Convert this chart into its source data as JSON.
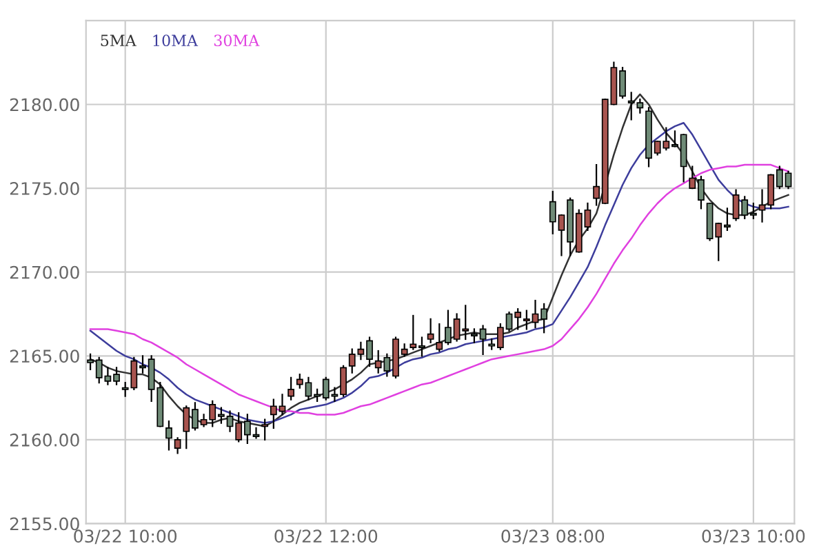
{
  "chart_data": {
    "type": "candlestick",
    "categories": [
      null,
      null,
      null,
      null,
      "03/22 10:00",
      null,
      null,
      null,
      null,
      null,
      null,
      null,
      null,
      null,
      null,
      null,
      null,
      null,
      null,
      null,
      null,
      null,
      null,
      null,
      null,
      null,
      null,
      "03/22 12:00",
      null,
      null,
      null,
      null,
      null,
      null,
      null,
      null,
      null,
      null,
      null,
      null,
      null,
      null,
      null,
      null,
      null,
      null,
      null,
      null,
      null,
      null,
      null,
      null,
      null,
      "03/23 08:00",
      null,
      null,
      null,
      null,
      null,
      null,
      null,
      null,
      null,
      null,
      null,
      null,
      null,
      null,
      null,
      null,
      null,
      null,
      null,
      null,
      null,
      null,
      "03/23 10:00",
      null,
      null,
      null,
      null
    ],
    "ohlc": [
      [
        2164.75,
        2165.1,
        2164.2,
        2164.6
      ],
      [
        2164.75,
        2164.9,
        2163.4,
        2163.7
      ],
      [
        2163.8,
        2164.3,
        2163.3,
        2163.5
      ],
      [
        2163.9,
        2164.3,
        2163.3,
        2163.5
      ],
      [
        2163.1,
        2163.4,
        2162.6,
        2163.0
      ],
      [
        2163.1,
        2164.9,
        2163.0,
        2164.7
      ],
      [
        2164.4,
        2165.0,
        2164.0,
        2164.3
      ],
      [
        2164.8,
        2165.0,
        2162.3,
        2163.0
      ],
      [
        2163.1,
        2163.4,
        2160.8,
        2160.8
      ],
      [
        2160.7,
        2161.1,
        2159.4,
        2160.1
      ],
      [
        2159.5,
        2160.1,
        2159.2,
        2160.0
      ],
      [
        2160.5,
        2162.0,
        2159.5,
        2161.9
      ],
      [
        2161.8,
        2162.2,
        2160.6,
        2160.7
      ],
      [
        2160.9,
        2161.5,
        2160.8,
        2161.2
      ],
      [
        2161.2,
        2162.3,
        2160.8,
        2162.1
      ],
      [
        2161.5,
        2161.9,
        2161.0,
        2161.4
      ],
      [
        2161.4,
        2161.7,
        2160.5,
        2160.8
      ],
      [
        2160.0,
        2161.6,
        2159.9,
        2161.0
      ],
      [
        2161.1,
        2161.5,
        2159.8,
        2160.3
      ],
      [
        2160.3,
        2160.7,
        2160.1,
        2160.2
      ],
      [
        2160.8,
        2161.2,
        2160.0,
        2160.9
      ],
      [
        2161.5,
        2162.4,
        2160.7,
        2162.0
      ],
      [
        2161.7,
        2162.7,
        2161.5,
        2162.0
      ],
      [
        2162.6,
        2163.7,
        2162.4,
        2163.0
      ],
      [
        2163.3,
        2163.9,
        2163.1,
        2163.6
      ],
      [
        2163.4,
        2163.7,
        2162.4,
        2162.6
      ],
      [
        2162.7,
        2163.0,
        2162.3,
        2162.6
      ],
      [
        2163.6,
        2163.7,
        2162.4,
        2162.5
      ],
      [
        2162.7,
        2163.1,
        2162.3,
        2162.6
      ],
      [
        2162.7,
        2164.4,
        2162.6,
        2164.3
      ],
      [
        2164.4,
        2165.4,
        2164.0,
        2165.1
      ],
      [
        2165.1,
        2165.8,
        2164.8,
        2165.4
      ],
      [
        2165.9,
        2166.1,
        2164.4,
        2164.8
      ],
      [
        2164.3,
        2165.3,
        2164.0,
        2164.7
      ],
      [
        2164.9,
        2165.1,
        2163.8,
        2164.1
      ],
      [
        2163.8,
        2166.1,
        2163.7,
        2166.0
      ],
      [
        2165.1,
        2165.7,
        2165.0,
        2165.4
      ],
      [
        2165.5,
        2167.4,
        2165.4,
        2165.7
      ],
      [
        2165.6,
        2166.1,
        2165.0,
        2165.5
      ],
      [
        2166.0,
        2167.2,
        2165.8,
        2166.3
      ],
      [
        2165.4,
        2166.9,
        2165.3,
        2165.8
      ],
      [
        2166.7,
        2167.7,
        2165.7,
        2165.8
      ],
      [
        2166.0,
        2167.5,
        2165.9,
        2167.2
      ],
      [
        2166.5,
        2168.0,
        2166.0,
        2166.6
      ],
      [
        2166.3,
        2166.6,
        2165.8,
        2166.2
      ],
      [
        2166.6,
        2166.8,
        2165.1,
        2166.0
      ],
      [
        2165.7,
        2166.0,
        2165.4,
        2165.6
      ],
      [
        2165.5,
        2166.9,
        2165.4,
        2166.7
      ],
      [
        2167.5,
        2167.6,
        2166.5,
        2166.6
      ],
      [
        2167.3,
        2167.8,
        2166.6,
        2167.6
      ],
      [
        2167.1,
        2167.7,
        2166.6,
        2167.2
      ],
      [
        2167.0,
        2168.3,
        2166.7,
        2167.5
      ],
      [
        2167.8,
        2168.1,
        2166.4,
        2167.2
      ],
      [
        2174.2,
        2174.8,
        2172.3,
        2173.0
      ],
      [
        2172.5,
        2173.4,
        2171.0,
        2173.4
      ],
      [
        2174.3,
        2174.4,
        2171.0,
        2171.8
      ],
      [
        2171.2,
        2173.7,
        2171.2,
        2173.5
      ],
      [
        2172.7,
        2174.1,
        2172.5,
        2173.7
      ],
      [
        2174.4,
        2176.4,
        2174.0,
        2175.1
      ],
      [
        2174.1,
        2180.3,
        2174.1,
        2180.3
      ],
      [
        2180.0,
        2182.5,
        2180.0,
        2182.2
      ],
      [
        2182.0,
        2182.2,
        2180.4,
        2180.5
      ],
      [
        2180.2,
        2180.7,
        2179.1,
        2180.1
      ],
      [
        2180.1,
        2180.3,
        2179.5,
        2179.8
      ],
      [
        2179.6,
        2179.8,
        2176.3,
        2176.8
      ],
      [
        2177.1,
        2177.8,
        2177.0,
        2177.8
      ],
      [
        2177.4,
        2178.6,
        2177.3,
        2177.8
      ],
      [
        2177.6,
        2178.4,
        2177.5,
        2177.5
      ],
      [
        2178.2,
        2178.2,
        2175.4,
        2176.3
      ],
      [
        2175.0,
        2176.3,
        2175.0,
        2175.6
      ],
      [
        2175.5,
        2175.7,
        2173.8,
        2174.3
      ],
      [
        2174.1,
        2174.1,
        2171.9,
        2172.0
      ],
      [
        2172.1,
        2172.9,
        2170.7,
        2172.9
      ],
      [
        2172.8,
        2173.8,
        2172.5,
        2172.7
      ],
      [
        2173.2,
        2174.9,
        2173.1,
        2174.6
      ],
      [
        2174.3,
        2174.5,
        2173.2,
        2173.4
      ],
      [
        2173.5,
        2174.1,
        2173.2,
        2173.4
      ],
      [
        2173.7,
        2174.9,
        2173.0,
        2174.0
      ],
      [
        2174.0,
        2175.8,
        2173.8,
        2175.8
      ],
      [
        2176.1,
        2176.3,
        2175.0,
        2175.1
      ],
      [
        2175.9,
        2176.0,
        2175.0,
        2175.1
      ]
    ],
    "series": [
      {
        "name": "5MA",
        "type": "line",
        "color": "#333333",
        "values": [
          2164.8,
          2164.6,
          2164.3,
          2164.1,
          2164.0,
          2163.9,
          2163.9,
          2163.7,
          2163.3,
          2162.6,
          2162.0,
          2161.5,
          2161.2,
          2161.0,
          2161.0,
          2161.2,
          2161.3,
          2161.1,
          2161.0,
          2160.9,
          2160.8,
          2161.1,
          2161.5,
          2161.9,
          2162.2,
          2162.4,
          2162.6,
          2162.8,
          2163.0,
          2163.3,
          2163.6,
          2164.0,
          2164.5,
          2164.6,
          2164.7,
          2164.8,
          2165.0,
          2165.2,
          2165.4,
          2165.6,
          2165.8,
          2166.0,
          2166.2,
          2166.3,
          2166.4,
          2166.3,
          2166.3,
          2166.3,
          2166.4,
          2166.7,
          2166.9,
          2167.1,
          2167.2,
          2168.5,
          2169.8,
          2171.0,
          2171.9,
          2172.6,
          2173.5,
          2175.2,
          2177.0,
          2178.6,
          2180.0,
          2180.6,
          2180.0,
          2179.1,
          2178.3,
          2177.7,
          2177.0,
          2176.0,
          2175.0,
          2174.3,
          2173.8,
          2173.5,
          2173.4,
          2173.4,
          2173.6,
          2173.9,
          2174.2,
          2174.4,
          2174.6
        ]
      },
      {
        "name": "10MA",
        "type": "line",
        "color": "#3d3d9c",
        "values": [
          2166.5,
          2166.1,
          2165.7,
          2165.3,
          2165.0,
          2164.8,
          2164.5,
          2164.3,
          2164.0,
          2163.6,
          2163.1,
          2162.7,
          2162.4,
          2162.2,
          2162.0,
          2161.8,
          2161.6,
          2161.4,
          2161.2,
          2161.1,
          2161.0,
          2161.1,
          2161.3,
          2161.5,
          2161.8,
          2161.9,
          2162.0,
          2162.1,
          2162.3,
          2162.5,
          2162.8,
          2163.2,
          2163.7,
          2163.8,
          2164.0,
          2164.3,
          2164.6,
          2164.8,
          2164.9,
          2165.1,
          2165.2,
          2165.4,
          2165.5,
          2165.7,
          2165.8,
          2165.9,
          2166.0,
          2166.1,
          2166.2,
          2166.3,
          2166.4,
          2166.6,
          2166.7,
          2166.9,
          2167.7,
          2168.5,
          2169.4,
          2170.3,
          2171.5,
          2172.8,
          2174.0,
          2175.2,
          2176.2,
          2177.0,
          2177.6,
          2178.0,
          2178.4,
          2178.7,
          2178.9,
          2178.2,
          2177.3,
          2176.4,
          2175.5,
          2174.9,
          2174.4,
          2174.1,
          2173.9,
          2173.8,
          2173.8,
          2173.8,
          2173.9
        ]
      },
      {
        "name": "30MA",
        "type": "line",
        "color": "#e040e0",
        "values": [
          2166.6,
          2166.6,
          2166.6,
          2166.5,
          2166.4,
          2166.3,
          2166.0,
          2165.8,
          2165.5,
          2165.2,
          2164.9,
          2164.5,
          2164.2,
          2163.9,
          2163.6,
          2163.3,
          2163.0,
          2162.7,
          2162.5,
          2162.3,
          2162.1,
          2161.9,
          2161.7,
          2161.7,
          2161.6,
          2161.6,
          2161.5,
          2161.5,
          2161.5,
          2161.6,
          2161.8,
          2162.0,
          2162.1,
          2162.3,
          2162.5,
          2162.7,
          2162.9,
          2163.1,
          2163.3,
          2163.4,
          2163.6,
          2163.8,
          2164.0,
          2164.2,
          2164.4,
          2164.6,
          2164.8,
          2164.9,
          2165.0,
          2165.1,
          2165.2,
          2165.3,
          2165.4,
          2165.6,
          2166.0,
          2166.6,
          2167.2,
          2167.9,
          2168.7,
          2169.6,
          2170.5,
          2171.3,
          2172.0,
          2172.8,
          2173.5,
          2174.1,
          2174.6,
          2175.0,
          2175.3,
          2175.6,
          2175.9,
          2176.1,
          2176.2,
          2176.3,
          2176.3,
          2176.4,
          2176.4,
          2176.4,
          2176.4,
          2176.2,
          2176.0
        ]
      }
    ],
    "ylim": [
      2155,
      2185
    ],
    "yticks": [
      {
        "value": 2155,
        "label": "2155.00"
      },
      {
        "value": 2160,
        "label": "2160.00"
      },
      {
        "value": 2165,
        "label": "2165.00"
      },
      {
        "value": 2170,
        "label": "2170.00"
      },
      {
        "value": 2175,
        "label": "2175.00"
      },
      {
        "value": 2180,
        "label": "2180.00"
      }
    ],
    "grid": true,
    "legend": "top left"
  }
}
